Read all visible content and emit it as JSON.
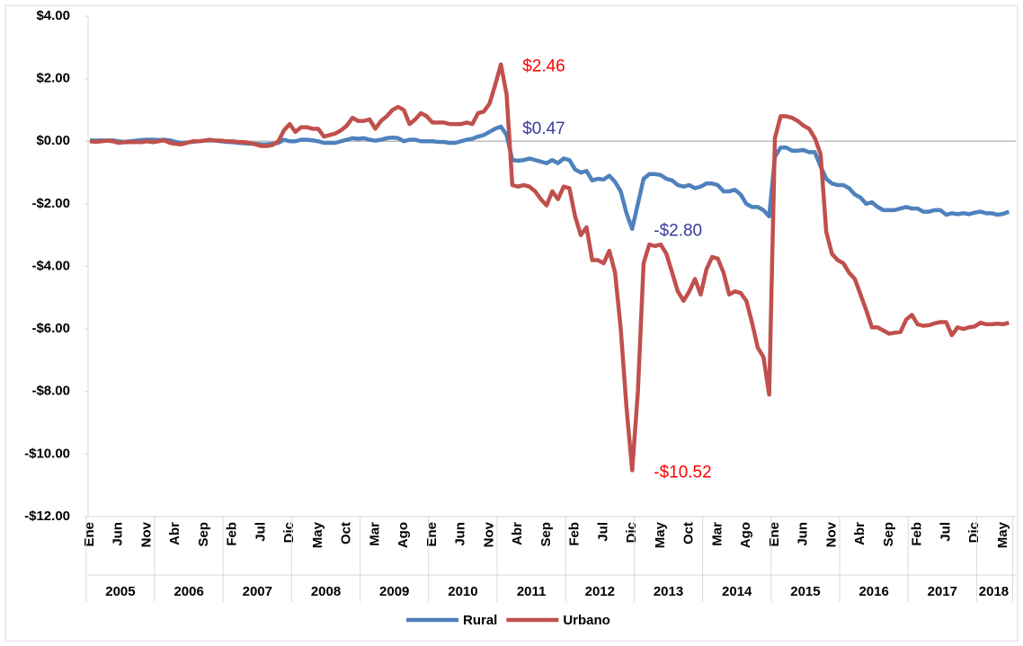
{
  "chart_data": {
    "type": "line",
    "categories": [
      "Ene",
      null,
      null,
      null,
      null,
      "Jun",
      null,
      null,
      null,
      null,
      "Nov",
      null,
      null,
      null,
      null,
      "Abr",
      null,
      null,
      null,
      null,
      "Sep",
      null,
      null,
      null,
      null,
      "Feb",
      null,
      null,
      null,
      null,
      "Jul",
      null,
      null,
      null,
      null,
      "Dic",
      null,
      null,
      null,
      null,
      "May",
      null,
      null,
      null,
      null,
      "Oct",
      null,
      null,
      null,
      null,
      "Mar",
      null,
      null,
      null,
      null,
      "Ago",
      null,
      null,
      null,
      null,
      "Ene",
      null,
      null,
      null,
      null,
      "Jun",
      null,
      null,
      null,
      null,
      "Nov",
      null,
      null,
      null,
      null,
      "Abr",
      null,
      null,
      null,
      null,
      "Sep",
      null,
      null,
      null,
      null,
      "Feb",
      null,
      null,
      null,
      null,
      "Jul",
      null,
      null,
      null,
      null,
      "Dic",
      null,
      null,
      null,
      null,
      "May",
      null,
      null,
      null,
      null,
      "Oct",
      null,
      null,
      null,
      null,
      "Mar",
      null,
      null,
      null,
      null,
      "Ago",
      null,
      null,
      null,
      null,
      "Ene",
      null,
      null,
      null,
      null,
      "Jun",
      null,
      null,
      null,
      null,
      "Nov",
      null,
      null,
      null,
      null,
      "Abr",
      null,
      null,
      null,
      null,
      "Sep",
      null,
      null,
      null,
      null,
      "Feb",
      null,
      null,
      null,
      null,
      "Jul",
      null,
      null,
      null,
      null,
      "Dic",
      null,
      null,
      null,
      null,
      "May",
      null
    ],
    "years": [
      "2005",
      "2006",
      "2007",
      "2008",
      "2009",
      "2010",
      "2011",
      "2012",
      "2013",
      "2014",
      "2015",
      "2016",
      "2017",
      "2018"
    ],
    "series": [
      {
        "name": "Rural",
        "color": "#4f81bd",
        "values": [
          0.03,
          0.02,
          0.03,
          0.02,
          0.03,
          0.0,
          -0.02,
          0.0,
          0.02,
          0.04,
          0.05,
          0.05,
          0.04,
          0.05,
          0.03,
          -0.02,
          -0.05,
          -0.04,
          -0.02,
          0.0,
          0.02,
          0.03,
          0.02,
          0.0,
          -0.02,
          -0.03,
          -0.05,
          -0.06,
          -0.08,
          -0.08,
          -0.1,
          -0.1,
          -0.08,
          -0.05,
          0.05,
          0.0,
          0.0,
          0.05,
          0.05,
          0.03,
          0.0,
          -0.05,
          -0.05,
          -0.05,
          0.0,
          0.05,
          0.1,
          0.08,
          0.1,
          0.05,
          0.02,
          0.05,
          0.1,
          0.12,
          0.1,
          0.0,
          0.05,
          0.05,
          0.0,
          0.0,
          0.0,
          -0.02,
          -0.02,
          -0.05,
          -0.05,
          0.0,
          0.05,
          0.08,
          0.15,
          0.2,
          0.3,
          0.4,
          0.47,
          0.2,
          -0.6,
          -0.62,
          -0.6,
          -0.55,
          -0.6,
          -0.65,
          -0.7,
          -0.6,
          -0.7,
          -0.55,
          -0.6,
          -0.9,
          -1.0,
          -0.95,
          -1.25,
          -1.2,
          -1.22,
          -1.1,
          -1.3,
          -1.6,
          -2.3,
          -2.8,
          -2.0,
          -1.2,
          -1.05,
          -1.05,
          -1.08,
          -1.2,
          -1.25,
          -1.4,
          -1.45,
          -1.4,
          -1.5,
          -1.45,
          -1.35,
          -1.35,
          -1.4,
          -1.6,
          -1.6,
          -1.55,
          -1.7,
          -2.0,
          -2.1,
          -2.1,
          -2.2,
          -2.4,
          -0.5,
          -0.2,
          -0.2,
          -0.3,
          -0.3,
          -0.28,
          -0.35,
          -0.35,
          -0.8,
          -1.2,
          -1.35,
          -1.4,
          -1.4,
          -1.5,
          -1.7,
          -1.8,
          -2.0,
          -1.95,
          -2.1,
          -2.2,
          -2.2,
          -2.2,
          -2.15,
          -2.1,
          -2.15,
          -2.15,
          -2.25,
          -2.25,
          -2.2,
          -2.2,
          -2.35,
          -2.3,
          -2.33,
          -2.3,
          -2.33,
          -2.28,
          -2.25,
          -2.3,
          -2.3,
          -2.35,
          -2.32,
          -2.25
        ]
      },
      {
        "name": "Urbano",
        "color": "#c0504d",
        "values": [
          0.0,
          -0.02,
          0.0,
          0.02,
          0.0,
          -0.05,
          -0.03,
          -0.03,
          -0.02,
          -0.03,
          0.0,
          -0.03,
          0.0,
          0.03,
          -0.05,
          -0.08,
          -0.1,
          -0.05,
          0.0,
          0.0,
          0.02,
          0.05,
          0.02,
          0.02,
          0.0,
          0.0,
          -0.02,
          -0.03,
          -0.05,
          -0.1,
          -0.15,
          -0.15,
          -0.12,
          0.0,
          0.35,
          0.55,
          0.3,
          0.45,
          0.45,
          0.4,
          0.4,
          0.15,
          0.2,
          0.25,
          0.35,
          0.5,
          0.75,
          0.65,
          0.65,
          0.7,
          0.4,
          0.65,
          0.8,
          1.0,
          1.1,
          1.0,
          0.55,
          0.7,
          0.9,
          0.8,
          0.6,
          0.6,
          0.6,
          0.55,
          0.55,
          0.55,
          0.6,
          0.55,
          0.9,
          0.95,
          1.2,
          1.8,
          2.46,
          1.5,
          -1.4,
          -1.45,
          -1.4,
          -1.45,
          -1.6,
          -1.85,
          -2.05,
          -1.6,
          -1.85,
          -1.45,
          -1.5,
          -2.4,
          -3.0,
          -2.75,
          -3.8,
          -3.8,
          -3.9,
          -3.5,
          -4.2,
          -6.0,
          -8.5,
          -10.52,
          -8.0,
          -3.9,
          -3.3,
          -3.35,
          -3.3,
          -3.6,
          -4.2,
          -4.8,
          -5.1,
          -4.8,
          -4.4,
          -4.9,
          -4.1,
          -3.7,
          -3.75,
          -4.2,
          -4.9,
          -4.8,
          -4.85,
          -5.1,
          -5.8,
          -6.6,
          -6.9,
          -8.1,
          0.1,
          0.8,
          0.8,
          0.75,
          0.65,
          0.5,
          0.4,
          0.1,
          -0.4,
          -2.9,
          -3.6,
          -3.8,
          -3.9,
          -4.2,
          -4.4,
          -4.9,
          -5.4,
          -5.95,
          -5.95,
          -6.05,
          -6.15,
          -6.12,
          -6.1,
          -5.7,
          -5.55,
          -5.85,
          -5.9,
          -5.88,
          -5.82,
          -5.78,
          -5.78,
          -6.2,
          -5.95,
          -6.0,
          -5.95,
          -5.92,
          -5.8,
          -5.85,
          -5.85,
          -5.83,
          -5.85,
          -5.8
        ]
      }
    ],
    "annotations": [
      {
        "text": "$2.46",
        "color": "#ff0000",
        "series": 1,
        "point": 72
      },
      {
        "text": "$0.47",
        "color": "#3a3a9c",
        "series": 0,
        "point": 72
      },
      {
        "text": "-$2.80",
        "color": "#3a3a9c",
        "series": 0,
        "point": 95
      },
      {
        "text": "-$10.52",
        "color": "#ff0000",
        "series": 1,
        "point": 95
      }
    ],
    "ylim": [
      -12,
      4
    ],
    "yticks": [
      {
        "value": 4,
        "label": "$4.00"
      },
      {
        "value": 2,
        "label": "$2.00"
      },
      {
        "value": 0,
        "label": "$0.00"
      },
      {
        "value": -2,
        "label": "-$2.00"
      },
      {
        "value": -4,
        "label": "-$4.00"
      },
      {
        "value": -6,
        "label": "-$6.00"
      },
      {
        "value": -8,
        "label": "-$8.00"
      },
      {
        "value": -10,
        "label": "-$10.00"
      },
      {
        "value": -12,
        "label": "-$12.00"
      }
    ],
    "grid": false,
    "legend": "bottom"
  }
}
